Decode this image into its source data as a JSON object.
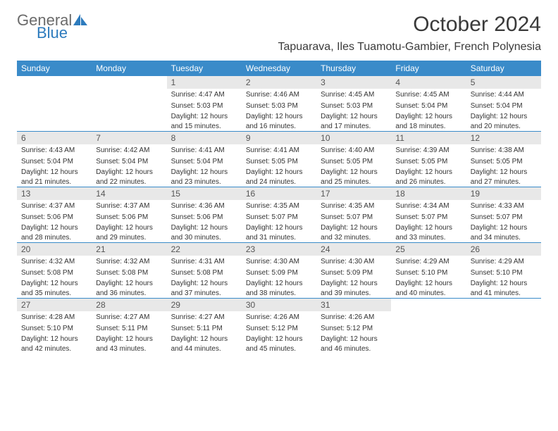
{
  "brand": {
    "word1": "General",
    "word2": "Blue"
  },
  "title": "October 2024",
  "location": "Tapuarava, Iles Tuamotu-Gambier, French Polynesia",
  "colors": {
    "header_bg": "#3a8bc9",
    "daynum_bg": "#e8e8e8",
    "brand_gray": "#6b6b6b",
    "brand_blue": "#2d7bbd",
    "text": "#333333",
    "rule": "#3a8bc9"
  },
  "day_headers": [
    "Sunday",
    "Monday",
    "Tuesday",
    "Wednesday",
    "Thursday",
    "Friday",
    "Saturday"
  ],
  "weeks": [
    [
      null,
      null,
      {
        "n": "1",
        "sr": "4:47 AM",
        "ss": "5:03 PM",
        "dl": "12 hours and 15 minutes."
      },
      {
        "n": "2",
        "sr": "4:46 AM",
        "ss": "5:03 PM",
        "dl": "12 hours and 16 minutes."
      },
      {
        "n": "3",
        "sr": "4:45 AM",
        "ss": "5:03 PM",
        "dl": "12 hours and 17 minutes."
      },
      {
        "n": "4",
        "sr": "4:45 AM",
        "ss": "5:04 PM",
        "dl": "12 hours and 18 minutes."
      },
      {
        "n": "5",
        "sr": "4:44 AM",
        "ss": "5:04 PM",
        "dl": "12 hours and 20 minutes."
      }
    ],
    [
      {
        "n": "6",
        "sr": "4:43 AM",
        "ss": "5:04 PM",
        "dl": "12 hours and 21 minutes."
      },
      {
        "n": "7",
        "sr": "4:42 AM",
        "ss": "5:04 PM",
        "dl": "12 hours and 22 minutes."
      },
      {
        "n": "8",
        "sr": "4:41 AM",
        "ss": "5:04 PM",
        "dl": "12 hours and 23 minutes."
      },
      {
        "n": "9",
        "sr": "4:41 AM",
        "ss": "5:05 PM",
        "dl": "12 hours and 24 minutes."
      },
      {
        "n": "10",
        "sr": "4:40 AM",
        "ss": "5:05 PM",
        "dl": "12 hours and 25 minutes."
      },
      {
        "n": "11",
        "sr": "4:39 AM",
        "ss": "5:05 PM",
        "dl": "12 hours and 26 minutes."
      },
      {
        "n": "12",
        "sr": "4:38 AM",
        "ss": "5:05 PM",
        "dl": "12 hours and 27 minutes."
      }
    ],
    [
      {
        "n": "13",
        "sr": "4:37 AM",
        "ss": "5:06 PM",
        "dl": "12 hours and 28 minutes."
      },
      {
        "n": "14",
        "sr": "4:37 AM",
        "ss": "5:06 PM",
        "dl": "12 hours and 29 minutes."
      },
      {
        "n": "15",
        "sr": "4:36 AM",
        "ss": "5:06 PM",
        "dl": "12 hours and 30 minutes."
      },
      {
        "n": "16",
        "sr": "4:35 AM",
        "ss": "5:07 PM",
        "dl": "12 hours and 31 minutes."
      },
      {
        "n": "17",
        "sr": "4:35 AM",
        "ss": "5:07 PM",
        "dl": "12 hours and 32 minutes."
      },
      {
        "n": "18",
        "sr": "4:34 AM",
        "ss": "5:07 PM",
        "dl": "12 hours and 33 minutes."
      },
      {
        "n": "19",
        "sr": "4:33 AM",
        "ss": "5:07 PM",
        "dl": "12 hours and 34 minutes."
      }
    ],
    [
      {
        "n": "20",
        "sr": "4:32 AM",
        "ss": "5:08 PM",
        "dl": "12 hours and 35 minutes."
      },
      {
        "n": "21",
        "sr": "4:32 AM",
        "ss": "5:08 PM",
        "dl": "12 hours and 36 minutes."
      },
      {
        "n": "22",
        "sr": "4:31 AM",
        "ss": "5:08 PM",
        "dl": "12 hours and 37 minutes."
      },
      {
        "n": "23",
        "sr": "4:30 AM",
        "ss": "5:09 PM",
        "dl": "12 hours and 38 minutes."
      },
      {
        "n": "24",
        "sr": "4:30 AM",
        "ss": "5:09 PM",
        "dl": "12 hours and 39 minutes."
      },
      {
        "n": "25",
        "sr": "4:29 AM",
        "ss": "5:10 PM",
        "dl": "12 hours and 40 minutes."
      },
      {
        "n": "26",
        "sr": "4:29 AM",
        "ss": "5:10 PM",
        "dl": "12 hours and 41 minutes."
      }
    ],
    [
      {
        "n": "27",
        "sr": "4:28 AM",
        "ss": "5:10 PM",
        "dl": "12 hours and 42 minutes."
      },
      {
        "n": "28",
        "sr": "4:27 AM",
        "ss": "5:11 PM",
        "dl": "12 hours and 43 minutes."
      },
      {
        "n": "29",
        "sr": "4:27 AM",
        "ss": "5:11 PM",
        "dl": "12 hours and 44 minutes."
      },
      {
        "n": "30",
        "sr": "4:26 AM",
        "ss": "5:12 PM",
        "dl": "12 hours and 45 minutes."
      },
      {
        "n": "31",
        "sr": "4:26 AM",
        "ss": "5:12 PM",
        "dl": "12 hours and 46 minutes."
      },
      null,
      null
    ]
  ],
  "labels": {
    "sunrise": "Sunrise:",
    "sunset": "Sunset:",
    "daylight": "Daylight:"
  }
}
